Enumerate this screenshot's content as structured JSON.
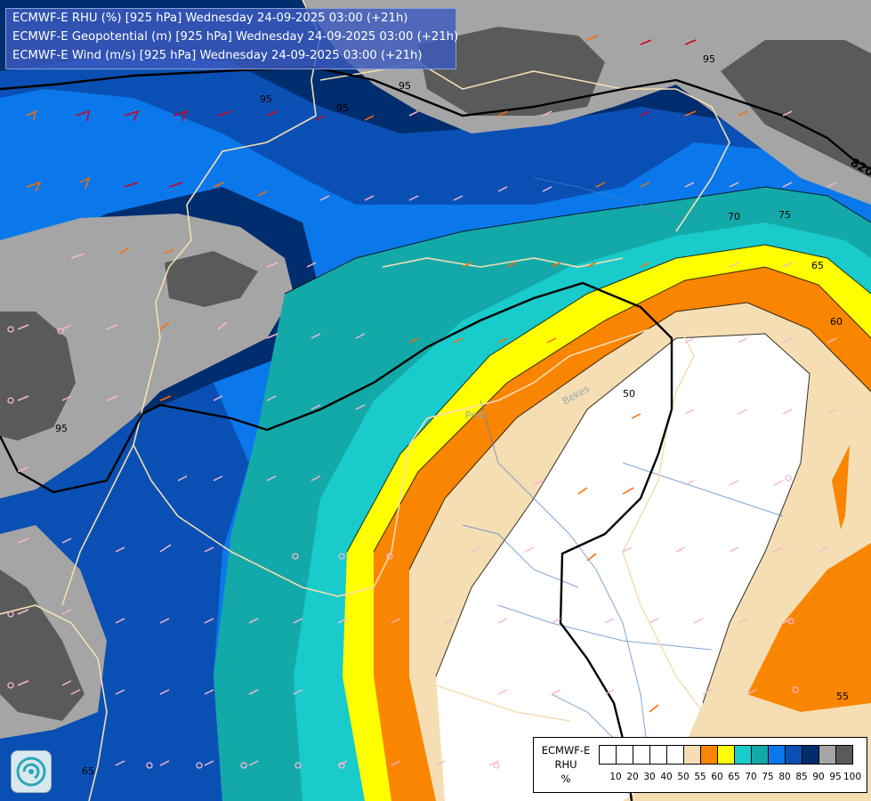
{
  "header": {
    "line1": "ECMWF-E RHU (%) [925 hPa] Wednesday 24-09-2025 03:00 (+21h)",
    "line2": "ECMWF-E Geopotential (m) [925 hPa] Wednesday 24-09-2025 03:00 (+21h)",
    "line3": "ECMWF-E Wind (m/s) [925 hPa] Wednesday 24-09-2025 03:00 (+21h)"
  },
  "legend": {
    "title1": "ECMWF-E",
    "title2": "RHU",
    "unit": "%",
    "ticks": [
      "10",
      "20",
      "30",
      "40",
      "50",
      "55",
      "60",
      "65",
      "70",
      "75",
      "80",
      "85",
      "90",
      "95",
      "100"
    ],
    "colors": [
      "#ffffff",
      "#ffffff",
      "#ffffff",
      "#ffffff",
      "#ffffff",
      "#f5deb3",
      "#fa8500",
      "#ffff00",
      "#19cbcb",
      "#14a9a9",
      "#0a78eb",
      "#0a50b4",
      "#002d6e",
      "#a5a5a5",
      "#5a5a5a"
    ]
  },
  "map_labels": {
    "geo_820": "820",
    "c95a": "95",
    "c95b": "95",
    "c95c": "95",
    "c95d": "95",
    "c95e": "95",
    "c70": "70",
    "c75": "75",
    "c65a": "65",
    "c60": "60",
    "c50": "50",
    "c55": "55",
    "c65b": "65",
    "city_pest": "Pest",
    "city_bekes": "Bekes"
  },
  "colors": {
    "header_bg": "#3c5abe",
    "geopotential_line": "#000000",
    "borders": "#f5deb3",
    "rivers": "#4a7ec8"
  },
  "icons": {
    "logo": "ecmwf-swirl-logo"
  }
}
